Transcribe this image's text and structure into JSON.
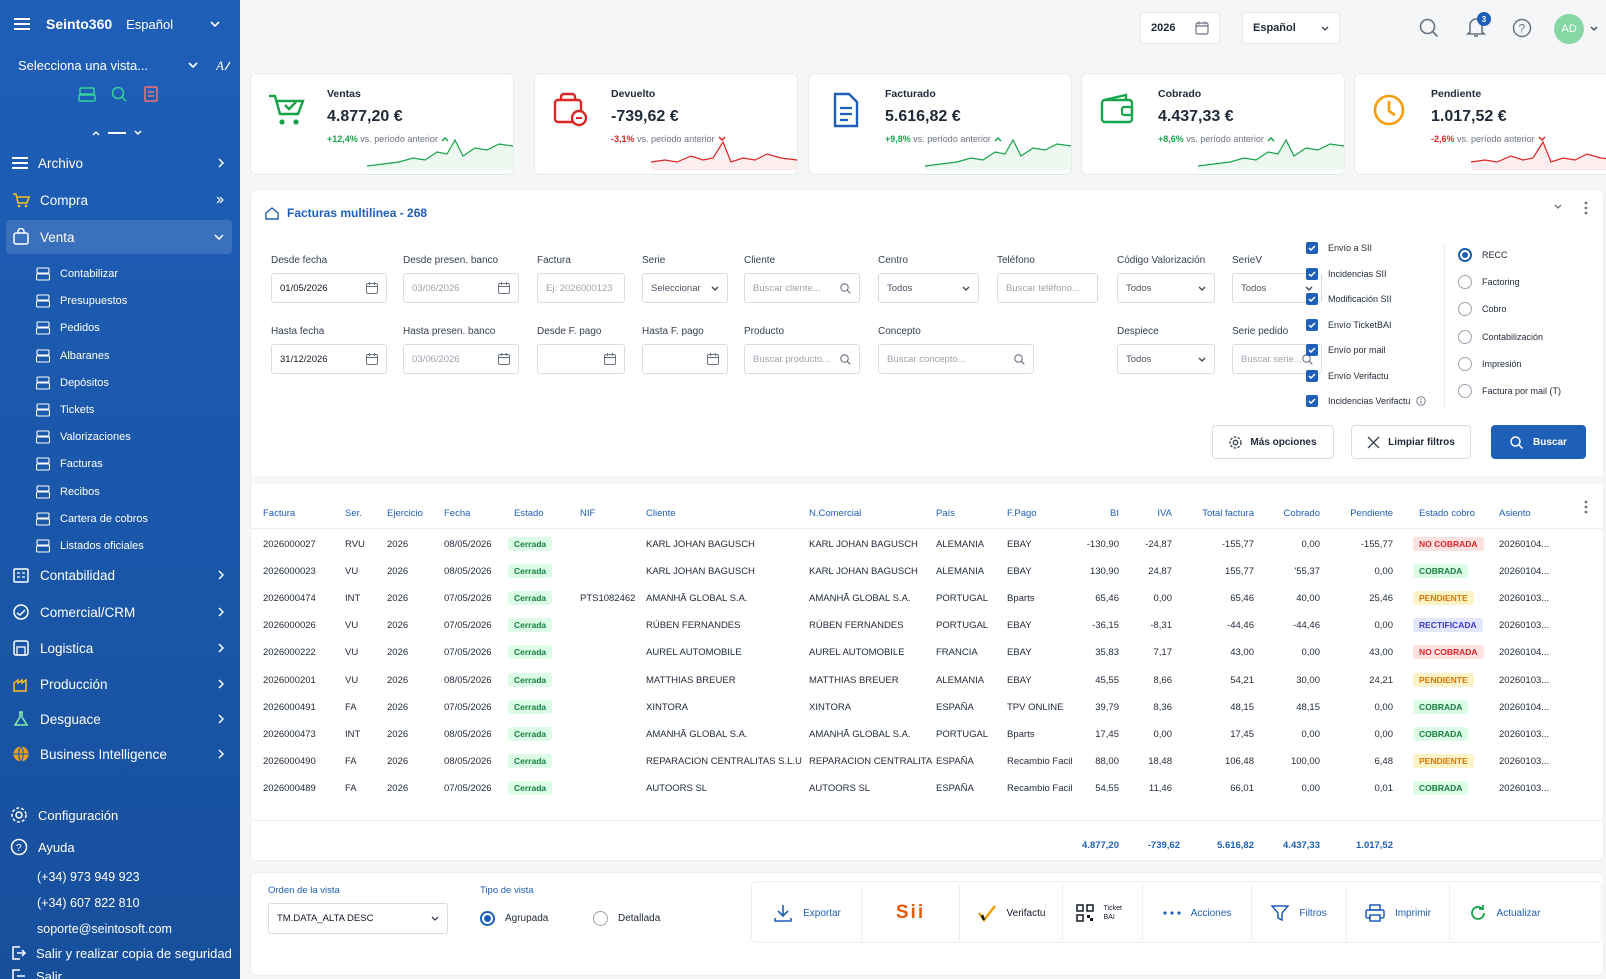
{
  "sidebar": {
    "brand": "Seinto360",
    "language": "Español",
    "view_select": "Selecciona una vista...",
    "nav": [
      {
        "label": "Archivo"
      },
      {
        "label": "Compra"
      },
      {
        "label": "Venta"
      }
    ],
    "venta_items": [
      "Contabilizar",
      "Presupuestos",
      "Pedidos",
      "Albaranes",
      "Depósitos",
      "Tickets",
      "Valorizaciones",
      "Facturas",
      "Recibos",
      "Cartera de cobros",
      "Listados oficiales"
    ],
    "nav2": [
      {
        "label": "Contabilidad"
      },
      {
        "label": "Comercial/CRM"
      },
      {
        "label": "Logistica"
      },
      {
        "label": "Producción"
      },
      {
        "label": "Desguace"
      },
      {
        "label": "Business Intelligence"
      }
    ],
    "config": "Configuración",
    "help": "Ayuda",
    "phone1": "(+34) 973 949 923",
    "phone2": "(+34) 607 822 810",
    "email": "soporte@seintosoft.com",
    "logout_backup": "Salir y realizar copia de seguridad",
    "logout": "Salir"
  },
  "header": {
    "year": "2026",
    "language": "Español",
    "notifications": "3",
    "avatar": "AD"
  },
  "kpis": [
    {
      "title": "Ventas",
      "value": "4.877,20 €",
      "delta": "+12,4%",
      "delta_text": "vs. período anterior",
      "trend": "up",
      "color": "#16a34a",
      "icon": "cart-icon"
    },
    {
      "title": "Devuelto",
      "value": "-739,62 €",
      "delta": "-3,1%",
      "delta_text": "vs. período anterior",
      "trend": "down",
      "color": "#dc2626",
      "icon": "return-icon"
    },
    {
      "title": "Facturado",
      "value": "5.616,82 €",
      "delta": "+9,8%",
      "delta_text": "vs. período anterior",
      "trend": "up",
      "color": "#16a34a",
      "icon": "invoice-icon"
    },
    {
      "title": "Cobrado",
      "value": "4.437,33 €",
      "delta": "+8,6%",
      "delta_text": "vs. período anterior",
      "trend": "up",
      "color": "#16a34a",
      "icon": "wallet-icon"
    },
    {
      "title": "Pendiente",
      "value": "1.017,52 €",
      "delta": "-2,6%",
      "delta_text": "vs. período anterior",
      "trend": "down",
      "color": "#dc2626",
      "icon": "clock-icon"
    }
  ],
  "panel": {
    "title": "Facturas multilinea - 268"
  },
  "filters": {
    "desde_fecha": {
      "label": "Desde fecha",
      "value": "01/05/2026"
    },
    "desde_presen": {
      "label": "Desde presen. banco",
      "placeholder": "03/06/2026"
    },
    "factura": {
      "label": "Factura",
      "placeholder": "Ej: 2026000123"
    },
    "serie": {
      "label": "Serie",
      "value": "Seleccionar"
    },
    "cliente": {
      "label": "Cliente",
      "placeholder": "Buscar cliente..."
    },
    "centro": {
      "label": "Centro",
      "value": "Todos"
    },
    "telefono": {
      "label": "Teléfono",
      "placeholder": "Buscar teléfono..."
    },
    "cod_val": {
      "label": "Código Valorización",
      "value": "Todos"
    },
    "seriev": {
      "label": "SerieV",
      "value": "Todos"
    },
    "hasta_fecha": {
      "label": "Hasta fecha",
      "value": "31/12/2026"
    },
    "hasta_presen": {
      "label": "Hasta presen. banco",
      "placeholder": "03/06/2026"
    },
    "desde_fpago": {
      "label": "Desde F. pago"
    },
    "hasta_fpago": {
      "label": "Hasta F. pago"
    },
    "producto": {
      "label": "Producto",
      "placeholder": "Buscar producto..."
    },
    "concepto": {
      "label": "Concepto",
      "placeholder": "Buscar concepto..."
    },
    "despiece": {
      "label": "Despiece",
      "value": "Todos"
    },
    "serie_pedido": {
      "label": "Serie pedido",
      "placeholder": "Buscar serie..."
    }
  },
  "checks": [
    "Envío a SII",
    "Incidencias SII",
    "Modificación SII",
    "Envío TicketBAI",
    "Envío por mail",
    "Envío Verifactu",
    "Incidencias Verifactu"
  ],
  "radios": [
    "RECC",
    "Factoring",
    "Cobro",
    "Contabilización",
    "Impresión",
    "Factura por mail (T)"
  ],
  "buttons": {
    "more": "Más opciones",
    "clear": "Limpiar filtros",
    "search": "Buscar"
  },
  "table": {
    "columns": [
      "Factura",
      "Ser.",
      "Ejercicio",
      "Fecha",
      "Estado",
      "NIF",
      "Cliente",
      "N.Comercial",
      "País",
      "F.Pago",
      "BI",
      "IVA",
      "Total factura",
      "Cobrado",
      "Pendiente",
      "Estado cobro",
      "Asiento"
    ],
    "rows": [
      [
        "2026000027",
        "RVU",
        "2026",
        "08/05/2026",
        "Cerrada",
        "",
        "KARL JOHAN BAGUSCH",
        "KARL JOHAN BAGUSCH",
        "ALEMANIA",
        "EBAY",
        "-130,90",
        "-24,87",
        "-155,77",
        "0,00",
        "-155,77",
        "NO COBRADA",
        "20260104..."
      ],
      [
        "2026000023",
        "VU",
        "2026",
        "08/05/2026",
        "Cerrada",
        "",
        "KARL JOHAN BAGUSCH",
        "KARL JOHAN BAGUSCH",
        "ALEMANIA",
        "EBAY",
        "130,90",
        "24,87",
        "155,77",
        "'55,37",
        "0,00",
        "COBRADA",
        "20260104..."
      ],
      [
        "2026000474",
        "INT",
        "2026",
        "07/05/2026",
        "Cerrada",
        "PTS1082462",
        "AMANHÃ GLOBAL S.A.",
        "AMANHÃ GLOBAL S.A.",
        "PORTUGAL",
        "Bparts",
        "65,46",
        "0,00",
        "65,46",
        "40,00",
        "25,46",
        "PENDIENTE",
        "20260103..."
      ],
      [
        "2026000026",
        "VU",
        "2026",
        "07/05/2026",
        "Cerrada",
        "",
        "RÚBEN FERNANDES",
        "RÚBEN FERNANDES",
        "PORTUGAL",
        "EBAY",
        "-36,15",
        "-8,31",
        "-44,46",
        "-44,46",
        "0,00",
        "RECTIFICADA",
        "20260103..."
      ],
      [
        "2026000222",
        "VU",
        "2026",
        "07/05/2026",
        "Cerrada",
        "",
        "AUREL AUTOMOBILE",
        "AUREL AUTOMOBILE",
        "FRANCIA",
        "EBAY",
        "35,83",
        "7,17",
        "43,00",
        "0,00",
        "43,00",
        "NO COBRADA",
        "20260104..."
      ],
      [
        "2026000201",
        "VU",
        "2026",
        "08/05/2026",
        "Cerrada",
        "",
        "MATTHIAS BREUER",
        "MATTHIAS BREUER",
        "ALEMANIA",
        "EBAY",
        "45,55",
        "8,66",
        "54,21",
        "30,00",
        "24,21",
        "PENDIENTE",
        "20260103..."
      ],
      [
        "2026000491",
        "FA",
        "2026",
        "07/05/2026",
        "Cerrada",
        "",
        "XINTORA",
        "XINTORA",
        "ESPAÑA",
        "TPV ONLINE",
        "39,79",
        "8,36",
        "48,15",
        "48,15",
        "0,00",
        "COBRADA",
        "20260104..."
      ],
      [
        "2026000473",
        "INT",
        "2026",
        "08/05/2026",
        "Cerrada",
        "",
        "AMANHÃ GLOBAL S.A.",
        "AMANHÃ GLOBAL S.A.",
        "PORTUGAL",
        "Bparts",
        "17,45",
        "0,00",
        "17,45",
        "0,00",
        "0,00",
        "COBRADA",
        "20260103..."
      ],
      [
        "2026000490",
        "FA",
        "2026",
        "08/05/2026",
        "Cerrada",
        "",
        "REPARACION CENTRALITAS S.L.U",
        "REPARACION CENTRALITA",
        "ESPAÑA",
        "Recambio Facil",
        "88,00",
        "18,48",
        "106,48",
        "100,00",
        "6,48",
        "PENDIENTE",
        "20260103..."
      ],
      [
        "2026000489",
        "FA",
        "2026",
        "07/05/2026",
        "Cerrada",
        "",
        "AUTOORS SL",
        "AUTOORS SL",
        "ESPAÑA",
        "Recambio Facil",
        "54,55",
        "11,46",
        "66,01",
        "0,00",
        "0,01",
        "COBRADA",
        "20260103..."
      ]
    ],
    "totals": [
      "4.877,20",
      "-739,62",
      "5.616,82",
      "4.437,33",
      "1.017,52"
    ]
  },
  "bottom": {
    "order_label": "Orden de la vista",
    "order_value": "TM.DATA_ALTA DESC",
    "type_label": "Tipo de vista",
    "type_grouped": "Agrupada",
    "type_detailed": "Detallada",
    "actions": {
      "export": "Exportar",
      "verifactu": "Verifactu",
      "ticketbai": "Ticket BAI",
      "acciones": "Acciones",
      "filtros": "Filtros",
      "imprimir": "Imprimir",
      "actualizar": "Actualizar"
    },
    "sii_logo": "Sii"
  },
  "colors": {
    "primary": "#1e5fb8",
    "green": "#16a34a",
    "red": "#dc2626",
    "amber": "#d97706"
  }
}
